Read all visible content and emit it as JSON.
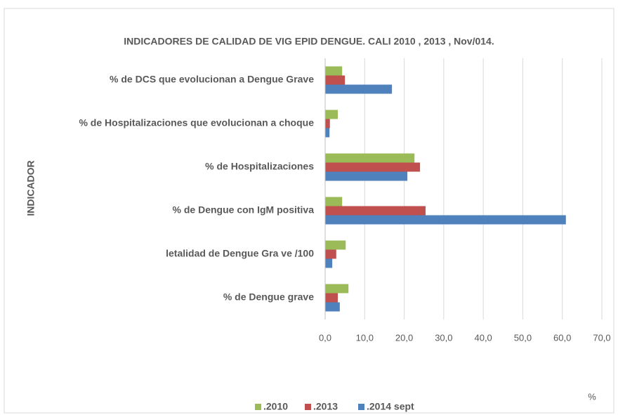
{
  "chart_data": {
    "type": "hbar",
    "title": "INDICADORES DE CALIDAD DE VIG EPID DENGUE. CALI 2010 , 2013 ,  Nov/014.",
    "y_label": "INDICADOR",
    "x_label": "%",
    "categories": [
      "% de DCS que evolucionan a Dengue Grave",
      "% de Hospitalizaciones que evolucionan a choque",
      "% de Hospitalizaciones",
      "% de Dengue con IgM positiva",
      "letalidad de Dengue Gra ve /100",
      "% de Dengue grave"
    ],
    "series": [
      {
        "name": ".2010",
        "color": "#9bbb59",
        "values": [
          4.3,
          3.2,
          22.6,
          4.3,
          5.2,
          5.9
        ]
      },
      {
        "name": ".2013",
        "color": "#c0504d",
        "values": [
          5.0,
          1.2,
          24.0,
          25.4,
          2.8,
          3.2
        ]
      },
      {
        "name": ".2014 sept",
        "color": "#4f81bd",
        "values": [
          16.9,
          1.1,
          20.8,
          60.9,
          1.8,
          3.7
        ]
      }
    ],
    "xlim": [
      0,
      70
    ],
    "xticks": [
      {
        "value": 0,
        "label": "0,0"
      },
      {
        "value": 10,
        "label": "10,0"
      },
      {
        "value": 20,
        "label": "20,0"
      },
      {
        "value": 30,
        "label": "30,0"
      },
      {
        "value": 40,
        "label": "40,0"
      },
      {
        "value": 50,
        "label": "50,0"
      },
      {
        "value": 60,
        "label": "60,0"
      },
      {
        "value": 70,
        "label": "70,0"
      }
    ],
    "grid": true,
    "legend": "bottom"
  }
}
